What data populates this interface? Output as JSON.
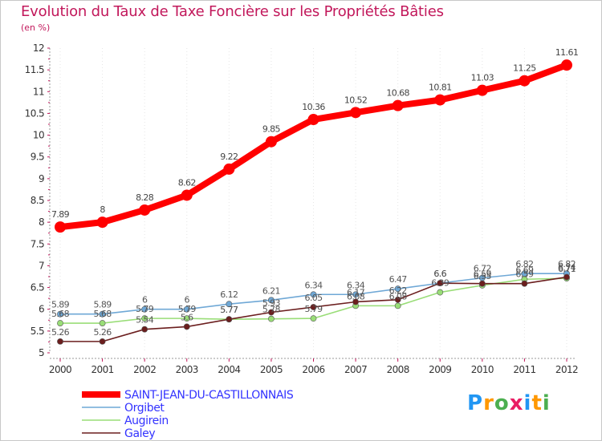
{
  "title": "Evolution du Taux de Taxe Foncière sur les Propriétés Bâties",
  "subtitle": "(en %)",
  "logo": {
    "text": "Proxiti",
    "colors": [
      "#2196f3",
      "#ff9800",
      "#4caf50",
      "#e91e63",
      "#2196f3",
      "#ff9800",
      "#4caf50"
    ]
  },
  "chart_data": {
    "type": "line",
    "x": [
      "2000",
      "2001",
      "2002",
      "2003",
      "2004",
      "2005",
      "2006",
      "2007",
      "2008",
      "2009",
      "2010",
      "2011",
      "2012"
    ],
    "ylim": [
      5,
      12
    ],
    "yticks": [
      "5",
      "5.5",
      "6",
      "6.5",
      "7",
      "7.5",
      "8",
      "8.5",
      "9",
      "9.5",
      "10",
      "10.5",
      "11",
      "11.5",
      "12"
    ],
    "grid": "dotted-vertical",
    "legend": "bottom-left",
    "series": [
      {
        "name": "SAINT-JEAN-DU-CASTILLONNAIS",
        "color": "#ff0000",
        "values": [
          7.89,
          8,
          8.28,
          8.62,
          9.22,
          9.85,
          10.36,
          10.52,
          10.68,
          10.81,
          11.03,
          11.25,
          11.61
        ],
        "labels": [
          "7.89",
          "8",
          "8.28",
          "8.62",
          "9.22",
          "9.85",
          "10.36",
          "10.52",
          "10.68",
          "10.81",
          "11.03",
          "11.25",
          "11.61"
        ]
      },
      {
        "name": "Orgibet",
        "color": "#6fa8d6",
        "values": [
          5.89,
          5.89,
          6,
          6,
          6.12,
          6.21,
          6.34,
          6.34,
          6.47,
          6.6,
          6.72,
          6.82,
          6.82
        ],
        "labels": [
          "5.89",
          "5.89",
          "6",
          "6",
          "6.12",
          "6.21",
          "6.34",
          "6.34",
          "6.47",
          "6.6",
          "6.72",
          "6.82",
          "6.82"
        ]
      },
      {
        "name": "Augirein",
        "color": "#99dd77",
        "values": [
          5.68,
          5.68,
          5.79,
          5.79,
          5.77,
          5.78,
          5.79,
          6.08,
          6.08,
          6.39,
          6.55,
          6.69,
          6.71
        ],
        "labels": [
          "5.68",
          "5.68",
          "5.79",
          "5.79",
          "5.77",
          "5.78",
          "5.79",
          "6.08",
          "6.08",
          "6.39",
          "6.55",
          "6.69",
          "6.71"
        ]
      },
      {
        "name": "Galey",
        "color": "#6b1e1e",
        "values": [
          5.26,
          5.26,
          5.54,
          5.6,
          5.77,
          5.93,
          6.05,
          6.17,
          6.22,
          6.6,
          6.59,
          6.59,
          6.74
        ],
        "labels": [
          "5.26",
          "5.26",
          "5.54",
          "5.6",
          "5.77",
          "5.93",
          "6.05",
          "6.17",
          "6.22",
          "6.6",
          "6.59",
          "6.59",
          "6.74"
        ]
      }
    ]
  }
}
